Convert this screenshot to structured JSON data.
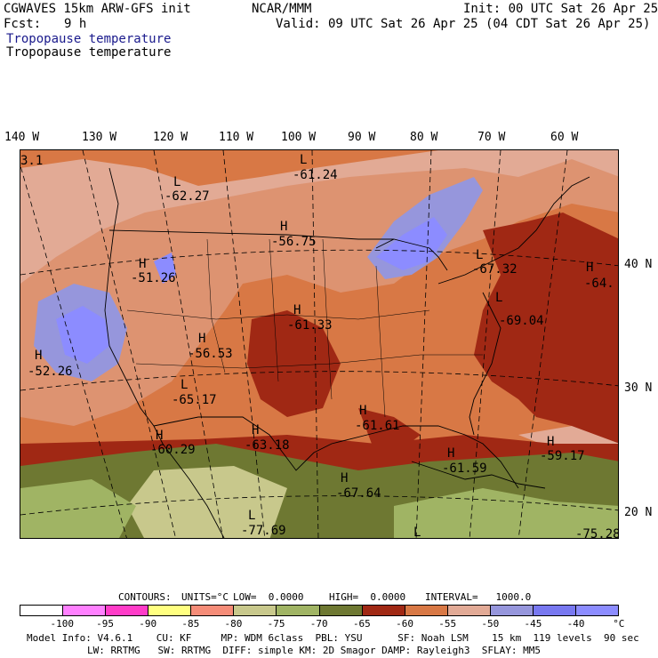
{
  "header": {
    "model": "CGWAVES 15km ARW-GFS init",
    "org": "NCAR/MMM",
    "init": "Init: 00 UTC Sat 26 Apr 25",
    "fcst_label": "Fcst:",
    "fcst_value": "9 h",
    "valid": "Valid: 09 UTC Sat 26 Apr 25 (04 CDT Sat 26 Apr 25)",
    "field_title_blue": "Tropopause temperature",
    "field_title_black": "Tropopause temperature"
  },
  "longitude_labels": [
    "140 W",
    "130 W",
    "120 W",
    "110 W",
    "100 W",
    "90 W",
    "80 W",
    "70 W",
    "60 W"
  ],
  "latitude_labels": [
    "40 N",
    "30 N",
    "20 N"
  ],
  "map_labels": [
    {
      "hl": "",
      "value": "3.1"
    },
    {
      "hl": "L",
      "value": "-61.24"
    },
    {
      "hl": "L",
      "value": "-62.27"
    },
    {
      "hl": "H",
      "value": "-56.75"
    },
    {
      "hl": "H",
      "value": "-51.26"
    },
    {
      "hl": "L",
      "value": "-67.32"
    },
    {
      "hl": "H",
      "value": "-64."
    },
    {
      "hl": "H",
      "value": "-61.33"
    },
    {
      "hl": "L",
      "value": "-69.04"
    },
    {
      "hl": "H",
      "value": "-56.53"
    },
    {
      "hl": "H",
      "value": "-52.26"
    },
    {
      "hl": "L",
      "value": "-65.17"
    },
    {
      "hl": "H",
      "value": "-61.61"
    },
    {
      "hl": "H",
      "value": "-60.29"
    },
    {
      "hl": "H",
      "value": "-63.18"
    },
    {
      "hl": "H",
      "value": "-59.17"
    },
    {
      "hl": "H",
      "value": "-61.59"
    },
    {
      "hl": "H",
      "value": "-67.64"
    },
    {
      "hl": "L",
      "value": "-77.69"
    },
    {
      "hl": "L",
      "value": "-75.28"
    }
  ],
  "contours": {
    "prefix": "CONTOURS:",
    "units": "UNITS=°C",
    "low": "LOW=  0.0000",
    "high": "HIGH=  0.0000",
    "interval": "INTERVAL=   1000.0"
  },
  "legend": {
    "colors": [
      "#ffffff",
      "#ff80ff",
      "#ff3cc8",
      "#ffff80",
      "#f58c78",
      "#c8c88c",
      "#a0b464",
      "#6e7832",
      "#a02814",
      "#d87845",
      "#e2aa96",
      "#9696dc",
      "#7878f0",
      "#8c8cff"
    ],
    "tick_labels": [
      "-100",
      "-95",
      "-90",
      "-85",
      "-80",
      "-75",
      "-70",
      "-65",
      "-60",
      "-55",
      "-50",
      "-45",
      "-40",
      "°C"
    ]
  },
  "model_info": {
    "line1": "Model Info: V4.6.1    CU: KF     MP: WDM 6class  PBL: YSU      SF: Noah LSM    15 km  119 levels  90 sec",
    "line2": "LW: RRTMG   SW: RRTMG  DIFF: simple KM: 2D Smagor DAMP: Rayleigh3  SFLAY: MM5"
  }
}
